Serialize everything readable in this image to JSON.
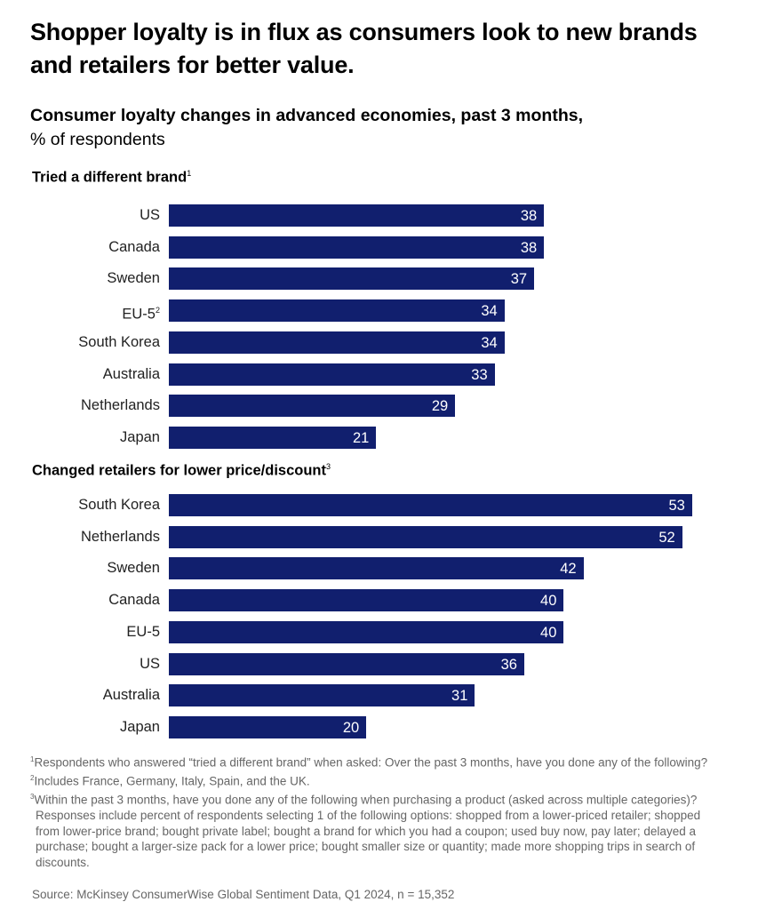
{
  "title": "Shopper loyalty is in flux as consumers look to new brands and retailers for better value.",
  "subtitle_bold": "Consumer loyalty changes in advanced economies, past 3 months,",
  "subtitle_unit": "% of respondents",
  "colors": {
    "bar": "#111f6e",
    "value_label": "#ffffff"
  },
  "chart_data": [
    {
      "type": "bar",
      "orientation": "horizontal",
      "title": "Tried a different brand",
      "title_footnote": "1",
      "categories": [
        "US",
        "Canada",
        "Sweden",
        "EU-5",
        "South Korea",
        "Australia",
        "Netherlands",
        "Japan"
      ],
      "category_footnotes": {
        "EU-5": "2"
      },
      "values": [
        38,
        38,
        37,
        34,
        34,
        33,
        29,
        21
      ],
      "xlim": [
        0,
        53
      ],
      "grid": false
    },
    {
      "type": "bar",
      "orientation": "horizontal",
      "title": "Changed retailers for lower price/discount",
      "title_footnote": "3",
      "categories": [
        "South Korea",
        "Netherlands",
        "Sweden",
        "Canada",
        "EU-5",
        "US",
        "Australia",
        "Japan"
      ],
      "values": [
        53,
        52,
        42,
        40,
        40,
        36,
        31,
        20
      ],
      "xlim": [
        0,
        53
      ],
      "grid": false
    }
  ],
  "footnotes": [
    {
      "mark": "1",
      "text": "Respondents who answered “tried a different brand” when asked: Over the past 3 months, have you done any of the following?"
    },
    {
      "mark": "2",
      "text": "Includes France, Germany, Italy, Spain, and the UK."
    },
    {
      "mark": "3",
      "text": "Within the past 3 months, have you done any of the following when purchasing a product (asked across multiple categories)? Responses include percent of respondents selecting 1 of the following options: shopped from a lower-priced retailer; shopped from lower-price brand; bought private label; bought a brand for which you had a coupon; used buy now, pay later; delayed a purchase; bought a larger-size pack for a lower price; bought smaller size or quantity; made more shopping trips in search of discounts."
    }
  ],
  "source": "Source: McKinsey ConsumerWise Global Sentiment Data, Q1 2024, n = 15,352"
}
